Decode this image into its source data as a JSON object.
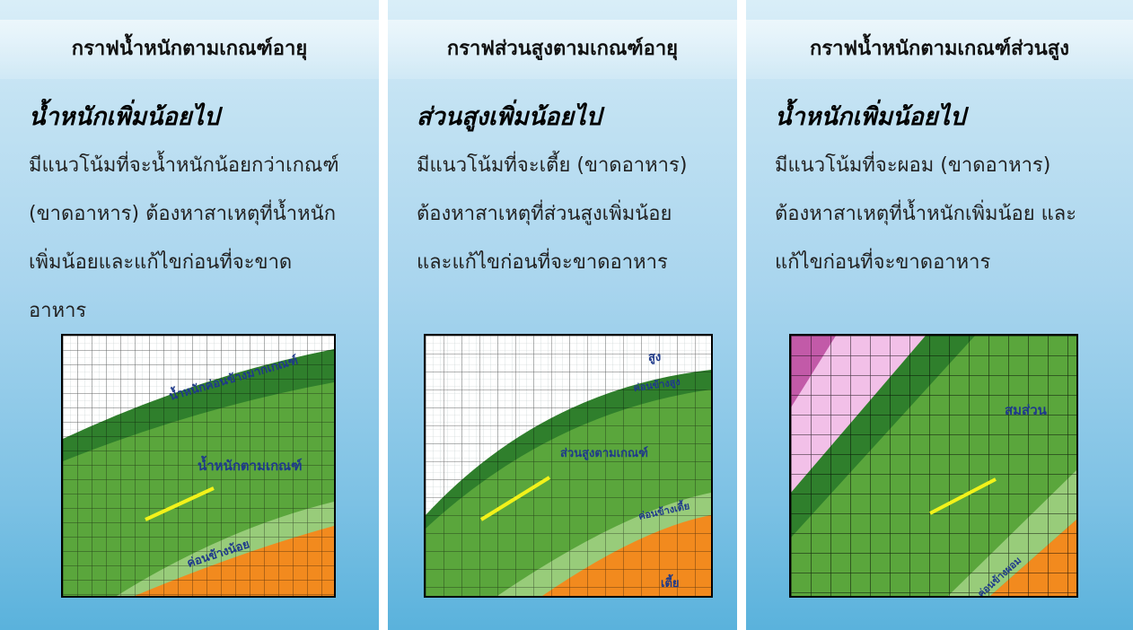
{
  "panels": [
    {
      "header": "กราฟน้ำหนักตามเกณฑ์อายุ",
      "title": "น้ำหนักเพิ่มน้อยไป",
      "lines": [
        "มีแนวโน้มที่จะน้ำหนักน้อยกว่าเกณฑ์",
        "(ขาดอาหาร) ต้องหาสาเหตุที่น้ำหนัก",
        "เพิ่มน้อยและแก้ไขก่อนที่จะขาด",
        "อาหาร"
      ],
      "chart_labels": [
        "น้ำหนักค่อนข้างมากเกณฑ์",
        "น้ำหนักตามเกณฑ์",
        "ค่อนข้างน้อย"
      ]
    },
    {
      "header": "กราฟส่วนสูงตามเกณฑ์อายุ",
      "title": "ส่วนสูงเพิ่มน้อยไป",
      "lines": [
        "มีแนวโน้มที่จะเตี้ย (ขาดอาหาร)",
        "ต้องหาสาเหตุที่ส่วนสูงเพิ่มน้อย",
        "และแก้ไขก่อนที่จะขาดอาหาร"
      ],
      "chart_labels": [
        "สูง",
        "ค่อนข้างสูง",
        "ส่วนสูงตามเกณฑ์",
        "ค่อนข้างเตี้ย",
        "เตี้ย"
      ]
    },
    {
      "header": "กราฟน้ำหนักตามเกณฑ์ส่วนสูง",
      "title": "น้ำหนักเพิ่มน้อยไป",
      "lines": [
        "มีแนวโน้มที่จะผอม (ขาดอาหาร)",
        "ต้องหาสาเหตุที่น้ำหนักเพิ่มน้อย และ",
        "แก้ไขก่อนที่จะขาดอาหาร"
      ],
      "chart_labels": [
        "สมส่วน",
        "ค่อนข้างผอม"
      ]
    }
  ],
  "colors": {
    "dark_green": "#2f7f2c",
    "green": "#5aa63c",
    "light_green": "#98cc7a",
    "orange": "#f28a1e",
    "pink": "#f2c0e8",
    "magenta": "#c25aa8",
    "trend_line": "#f2f21a"
  }
}
